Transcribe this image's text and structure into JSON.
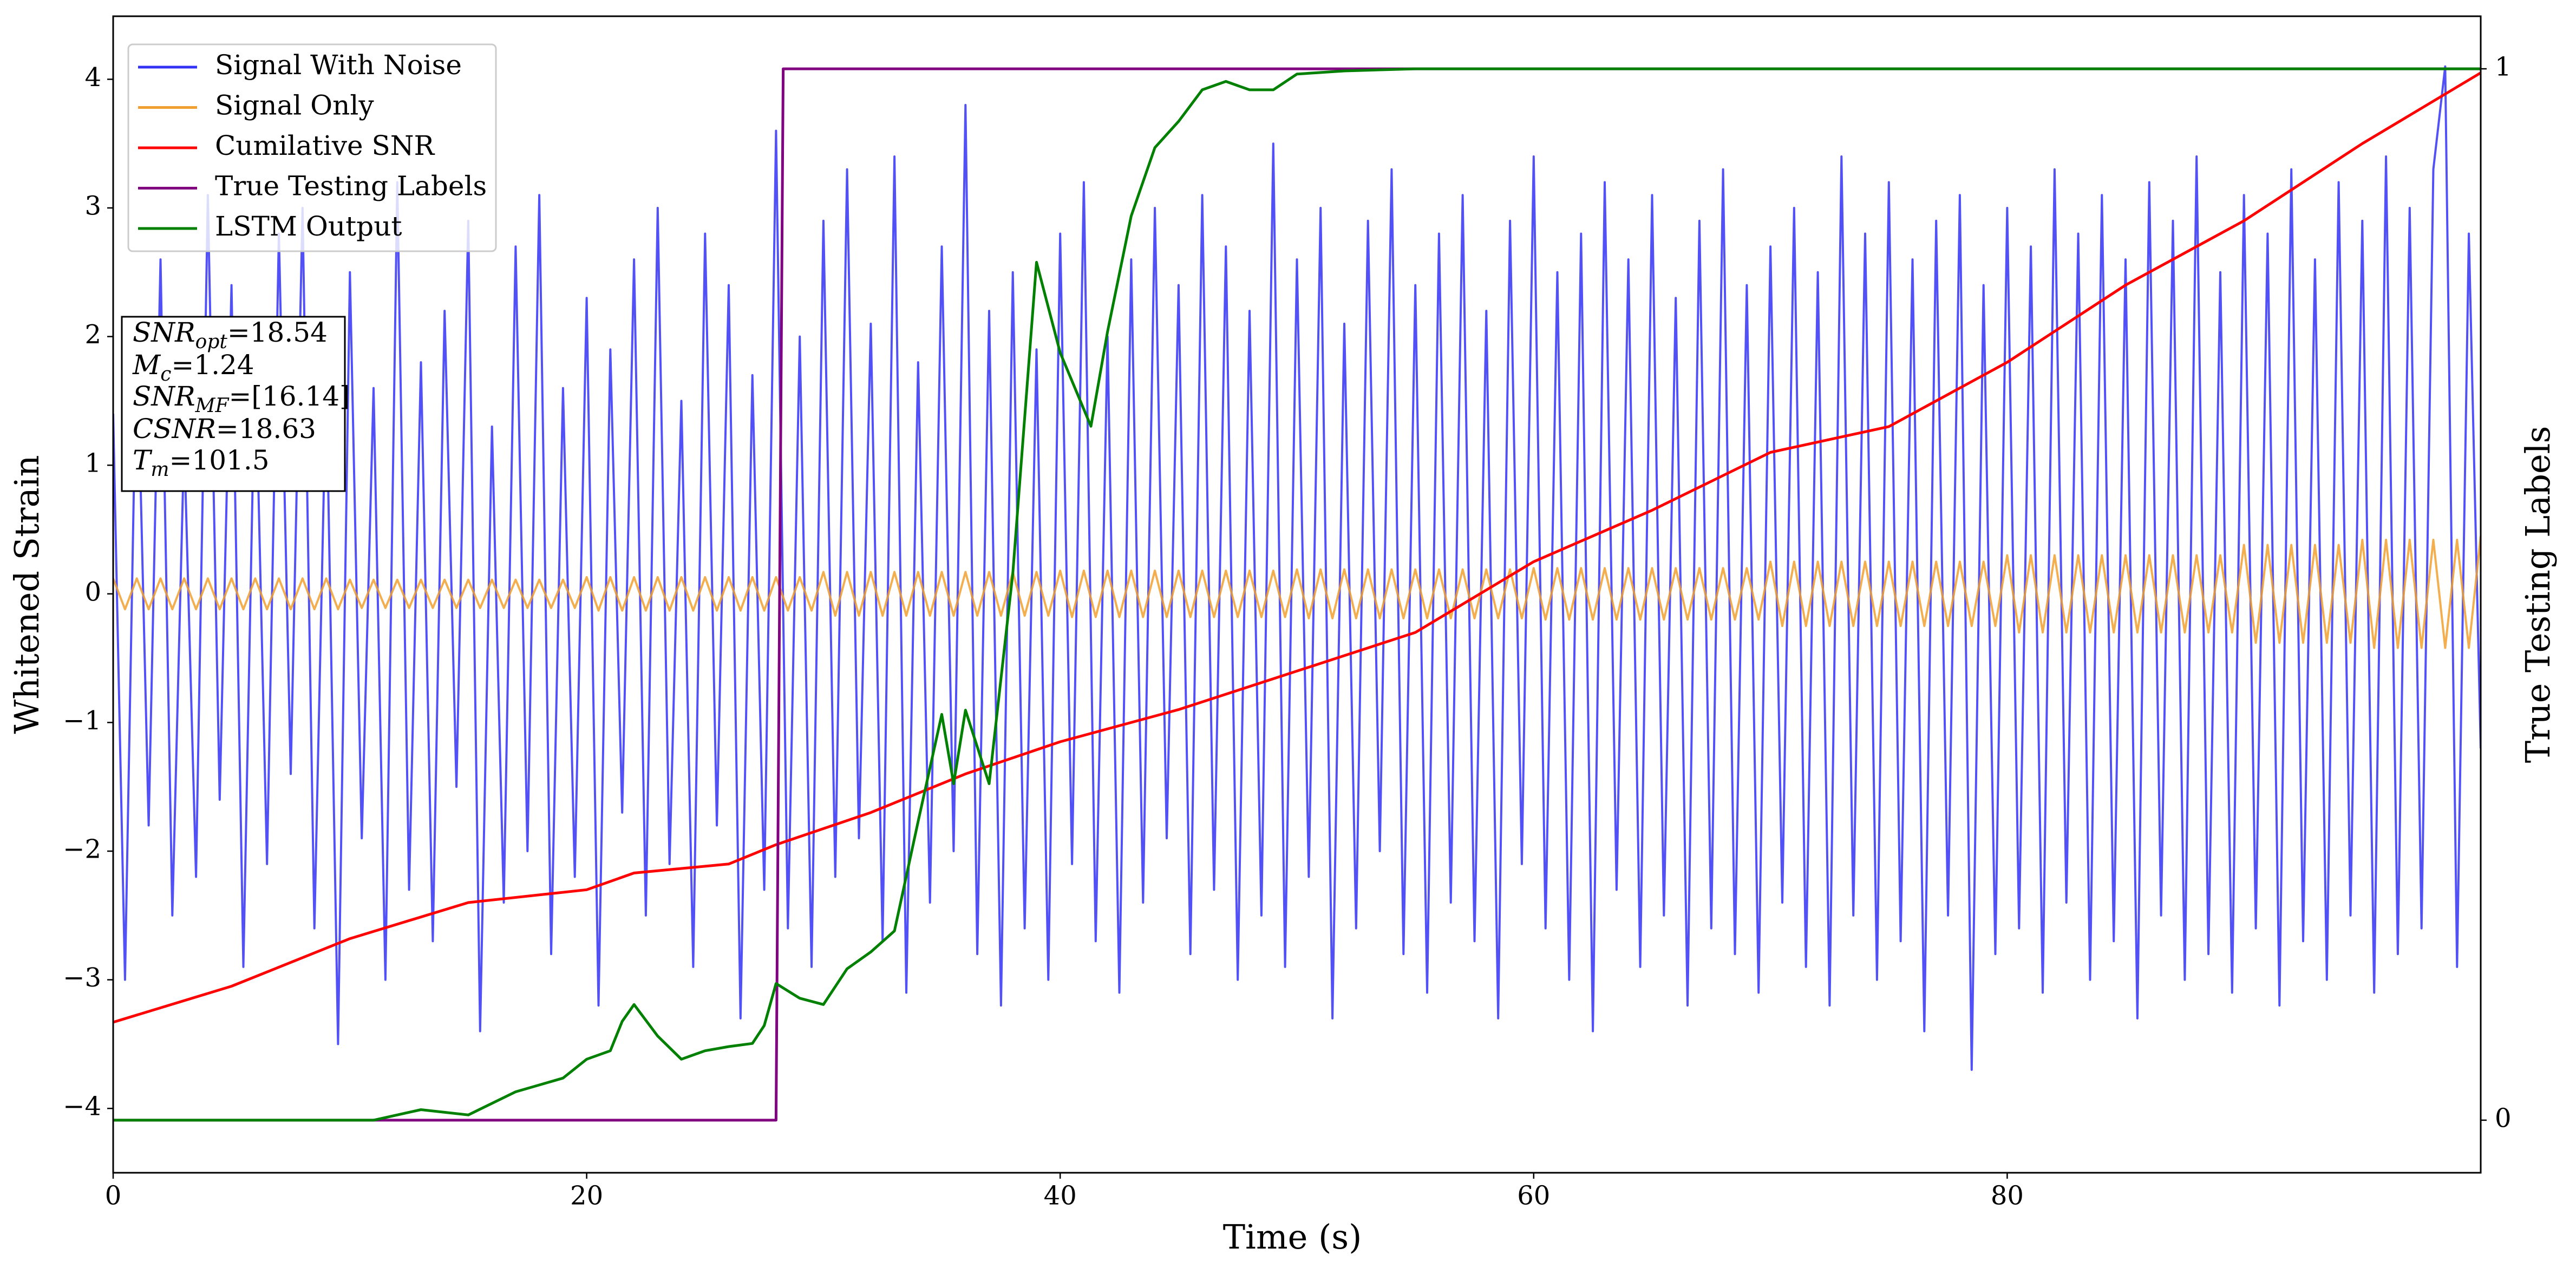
{
  "chart_data": {
    "type": "line",
    "xlabel": "Time (s)",
    "ylabel": "Whitened Strain",
    "y2label": "True Testing Labels",
    "xlim": [
      0,
      100
    ],
    "xticks": [
      0,
      20,
      40,
      60,
      80
    ],
    "ylim": [
      -4.5,
      4.49
    ],
    "yticks": [
      {
        "value": -4,
        "label": "−4"
      },
      {
        "value": -3,
        "label": "−3"
      },
      {
        "value": -2,
        "label": "−2"
      },
      {
        "value": -1,
        "label": "−1"
      },
      0,
      1,
      2,
      3,
      4
    ],
    "y2lim": [
      -0.05,
      1.05
    ],
    "y2ticks": [
      0,
      1
    ],
    "legend": "upper left",
    "annotation": [
      {
        "symbol": "SNR",
        "sub": "opt",
        "rest": "=18.54"
      },
      {
        "symbol": "M",
        "sub": "c",
        "rest": "=1.24"
      },
      {
        "symbol": "SNR",
        "sub": "MF",
        "rest": "=[16.14]"
      },
      {
        "symbol": "CSNR",
        "sub": "",
        "rest": "=18.63"
      },
      {
        "symbol": "T",
        "sub": "m",
        "rest": "=101.5"
      }
    ],
    "x": [
      0,
      0.5,
      1,
      1.5,
      2,
      2.5,
      3,
      3.5,
      4,
      4.5,
      5,
      5.5,
      6,
      6.5,
      7,
      7.5,
      8,
      8.5,
      9,
      9.5,
      10,
      10.5,
      11,
      11.5,
      12,
      12.5,
      13,
      13.5,
      14,
      14.5,
      15,
      15.5,
      16,
      16.5,
      17,
      17.5,
      18,
      18.5,
      19,
      19.5,
      20,
      20.5,
      21,
      21.5,
      22,
      22.5,
      23,
      23.5,
      24,
      24.5,
      25,
      25.5,
      26,
      26.5,
      27,
      27.5,
      28,
      28.5,
      29,
      29.5,
      30,
      30.5,
      31,
      31.5,
      32,
      32.5,
      33,
      33.5,
      34,
      34.5,
      35,
      35.5,
      36,
      36.5,
      37,
      37.5,
      38,
      38.5,
      39,
      39.5,
      40,
      40.5,
      41,
      41.5,
      42,
      42.5,
      43,
      43.5,
      44,
      44.5,
      45,
      45.5,
      46,
      46.5,
      47,
      47.5,
      48,
      48.5,
      49,
      49.5,
      50,
      50.5,
      51,
      51.5,
      52,
      52.5,
      53,
      53.5,
      54,
      54.5,
      55,
      55.5,
      56,
      56.5,
      57,
      57.5,
      58,
      58.5,
      59,
      59.5,
      60,
      60.5,
      61,
      61.5,
      62,
      62.5,
      63,
      63.5,
      64,
      64.5,
      65,
      65.5,
      66,
      66.5,
      67,
      67.5,
      68,
      68.5,
      69,
      69.5,
      70,
      70.5,
      71,
      71.5,
      72,
      72.5,
      73,
      73.5,
      74,
      74.5,
      75,
      75.5,
      76,
      76.5,
      77,
      77.5,
      78,
      78.5,
      79,
      79.5,
      80,
      80.5,
      81,
      81.5,
      82,
      82.5,
      83,
      83.5,
      84,
      84.5,
      85,
      85.5,
      86,
      86.5,
      87,
      87.5,
      88,
      88.5,
      89,
      89.5,
      90,
      90.5,
      91,
      91.5,
      92,
      92.5,
      93,
      93.5,
      94,
      94.5,
      95,
      95.5,
      96,
      96.5,
      97,
      97.5,
      98,
      98.5,
      99,
      99.5,
      100
    ],
    "series": [
      {
        "name": "Signal With Noise",
        "color": "#3333f5",
        "values": [
          1.4,
          -3.0,
          2.1,
          -1.8,
          2.6,
          -2.5,
          1.2,
          -2.2,
          3.1,
          -1.6,
          2.4,
          -2.9,
          1.9,
          -2.1,
          2.8,
          -1.4,
          3.0,
          -2.6,
          1.7,
          -3.5,
          2.5,
          -1.9,
          1.6,
          -3.0,
          3.2,
          -2.3,
          1.8,
          -2.7,
          2.2,
          -1.5,
          2.9,
          -3.4,
          1.3,
          -2.4,
          2.7,
          -2.0,
          3.1,
          -2.8,
          1.6,
          -2.2,
          2.3,
          -3.2,
          1.9,
          -1.7,
          2.6,
          -2.5,
          3.0,
          -2.1,
          1.5,
          -2.9,
          2.8,
          -1.8,
          2.4,
          -3.3,
          1.7,
          -2.3,
          3.6,
          -2.6,
          2.0,
          -2.9,
          2.9,
          -2.2,
          3.3,
          -1.9,
          2.1,
          -2.7,
          3.4,
          -3.1,
          1.8,
          -2.4,
          2.7,
          -2.0,
          3.8,
          -2.8,
          2.2,
          -3.2,
          2.5,
          -2.6,
          1.9,
          -3.0,
          2.8,
          -2.1,
          3.2,
          -2.7,
          2.0,
          -3.1,
          2.6,
          -2.4,
          3.0,
          -1.9,
          2.4,
          -2.8,
          3.1,
          -2.3,
          2.7,
          -3.0,
          2.2,
          -2.5,
          3.5,
          -2.9,
          2.6,
          -2.2,
          3.0,
          -3.3,
          2.1,
          -2.6,
          2.9,
          -2.0,
          3.3,
          -2.8,
          2.4,
          -3.1,
          2.8,
          -2.4,
          3.1,
          -2.7,
          2.2,
          -3.3,
          2.9,
          -2.1,
          3.4,
          -2.6,
          2.5,
          -3.0,
          2.8,
          -3.4,
          3.2,
          -2.3,
          2.6,
          -2.9,
          3.1,
          -2.5,
          2.3,
          -3.2,
          2.9,
          -2.6,
          3.3,
          -2.8,
          2.4,
          -3.1,
          2.7,
          -2.4,
          3.0,
          -2.9,
          2.5,
          -3.2,
          3.4,
          -2.5,
          2.8,
          -3.0,
          3.2,
          -2.7,
          2.6,
          -3.4,
          2.9,
          -2.5,
          3.1,
          -3.7,
          2.4,
          -2.8,
          3.0,
          -2.6,
          2.7,
          -3.1,
          3.3,
          -2.4,
          2.8,
          -3.0,
          3.1,
          -2.7,
          2.6,
          -3.3,
          3.2,
          -2.5,
          2.9,
          -3.0,
          3.4,
          -2.8,
          2.5,
          -3.1,
          3.1,
          -2.6,
          2.8,
          -3.2,
          3.3,
          -2.7,
          2.6,
          -3.0,
          3.2,
          -2.5,
          2.9,
          -3.1,
          3.4,
          -2.8,
          3.0,
          -2.6,
          3.3,
          4.1,
          -2.9,
          2.8,
          -1.2
        ]
      },
      {
        "name": "Signal Only",
        "color": "#f0a030",
        "values": [
          0.12,
          -0.12,
          0.12,
          -0.12,
          0.12,
          -0.12,
          0.12,
          -0.12,
          0.12,
          -0.12,
          0.12,
          -0.12,
          0.12,
          -0.12,
          0.12,
          -0.12,
          0.12,
          -0.12,
          0.12,
          -0.12,
          0.11,
          -0.11,
          0.11,
          -0.11,
          0.11,
          -0.11,
          0.11,
          -0.11,
          0.11,
          -0.11,
          0.11,
          -0.11,
          0.11,
          -0.11,
          0.11,
          -0.11,
          0.11,
          -0.11,
          0.11,
          -0.11,
          0.13,
          -0.13,
          0.13,
          -0.13,
          0.13,
          -0.13,
          0.13,
          -0.13,
          0.13,
          -0.13,
          0.13,
          -0.13,
          0.13,
          -0.13,
          0.13,
          -0.13,
          0.13,
          -0.13,
          0.13,
          -0.13,
          0.17,
          -0.17,
          0.17,
          -0.17,
          0.17,
          -0.17,
          0.17,
          -0.17,
          0.17,
          -0.17,
          0.17,
          -0.17,
          0.17,
          -0.17,
          0.17,
          -0.17,
          0.17,
          -0.17,
          0.17,
          -0.17,
          0.18,
          -0.18,
          0.18,
          -0.18,
          0.18,
          -0.18,
          0.18,
          -0.18,
          0.18,
          -0.18,
          0.18,
          -0.18,
          0.18,
          -0.18,
          0.18,
          -0.18,
          0.18,
          -0.18,
          0.18,
          -0.18,
          0.19,
          -0.19,
          0.19,
          -0.19,
          0.19,
          -0.19,
          0.19,
          -0.19,
          0.19,
          -0.19,
          0.19,
          -0.19,
          0.19,
          -0.19,
          0.19,
          -0.19,
          0.19,
          -0.19,
          0.19,
          -0.19,
          0.2,
          -0.2,
          0.2,
          -0.2,
          0.2,
          -0.2,
          0.2,
          -0.2,
          0.2,
          -0.2,
          0.2,
          -0.2,
          0.2,
          -0.2,
          0.2,
          -0.2,
          0.2,
          -0.2,
          0.2,
          -0.2,
          0.25,
          -0.25,
          0.25,
          -0.25,
          0.25,
          -0.25,
          0.25,
          -0.25,
          0.25,
          -0.25,
          0.25,
          -0.25,
          0.25,
          -0.25,
          0.25,
          -0.25,
          0.25,
          -0.25,
          0.25,
          -0.25,
          0.3,
          -0.3,
          0.3,
          -0.3,
          0.3,
          -0.3,
          0.3,
          -0.3,
          0.3,
          -0.3,
          0.3,
          -0.3,
          0.3,
          -0.3,
          0.3,
          -0.3,
          0.3,
          -0.3,
          0.3,
          -0.3,
          0.38,
          -0.38,
          0.38,
          -0.38,
          0.38,
          -0.38,
          0.38,
          -0.38,
          0.38,
          -0.38,
          0.42,
          -0.42,
          0.42,
          -0.42,
          0.42,
          -0.42,
          0.42,
          -0.42,
          0.42,
          -0.42,
          0.45
        ]
      },
      {
        "name": "Cumilative SNR",
        "color": "#ff0000",
        "x": [
          0,
          5,
          10,
          15,
          20,
          22,
          26,
          28,
          32,
          36,
          40,
          45,
          50,
          55,
          60,
          65,
          70,
          75,
          80,
          85,
          90,
          95,
          100
        ],
        "values": [
          -3.33,
          -3.05,
          -2.68,
          -2.4,
          -2.3,
          -2.17,
          -2.1,
          -1.95,
          -1.7,
          -1.4,
          -1.15,
          -0.9,
          -0.6,
          -0.3,
          0.25,
          0.65,
          1.1,
          1.3,
          1.8,
          2.4,
          2.9,
          3.5,
          4.05
        ]
      },
      {
        "name": "True Testing Labels",
        "color": "#800080",
        "axis": "y2",
        "x": [
          0,
          28,
          28.3,
          100
        ],
        "values": [
          0,
          0,
          1,
          1
        ]
      },
      {
        "name": "LSTM Output",
        "color": "#008000",
        "axis": "y2",
        "x": [
          0,
          11,
          13,
          15,
          17,
          19,
          20,
          21,
          21.5,
          22,
          23,
          24,
          25,
          26,
          27,
          27.5,
          28,
          29,
          30,
          31,
          32,
          33,
          34,
          35,
          35.5,
          36,
          37,
          38,
          39,
          40,
          41.3,
          42,
          43,
          44,
          45,
          46,
          47,
          48,
          49,
          50,
          52,
          55,
          100
        ],
        "values": [
          0,
          0,
          0.01,
          0.005,
          0.027,
          0.04,
          0.058,
          0.066,
          0.094,
          0.11,
          0.08,
          0.058,
          0.066,
          0.07,
          0.073,
          0.09,
          0.13,
          0.116,
          0.11,
          0.144,
          0.16,
          0.18,
          0.284,
          0.386,
          0.32,
          0.39,
          0.32,
          0.52,
          0.816,
          0.73,
          0.66,
          0.75,
          0.86,
          0.925,
          0.95,
          0.98,
          0.988,
          0.98,
          0.98,
          0.995,
          0.998,
          1,
          1
        ]
      }
    ]
  }
}
